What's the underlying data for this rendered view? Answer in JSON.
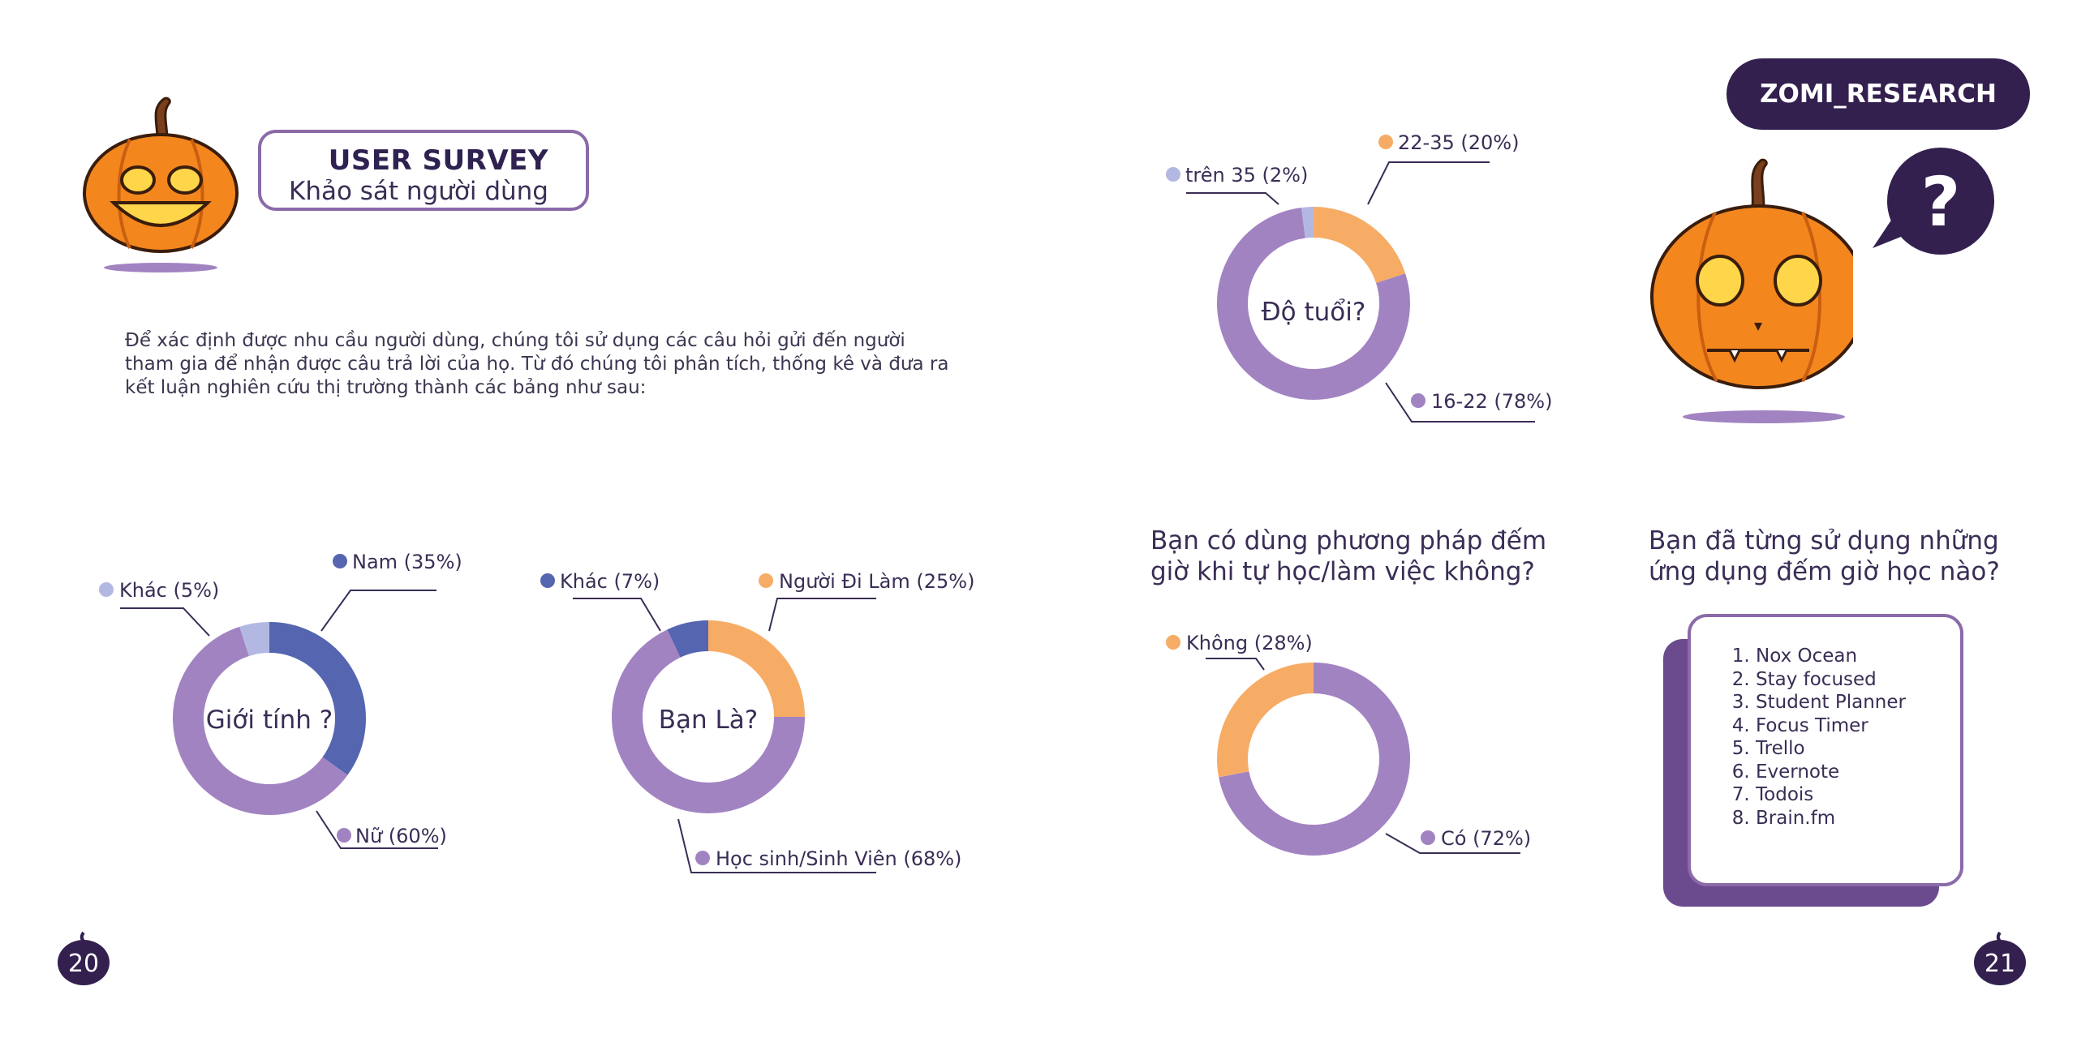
{
  "header": {
    "survey_title": "USER SURVEY",
    "survey_subtitle": "Khảo sát người dùng",
    "intro_text": "Để xác định được nhu cầu người dùng, chúng tôi sử dụng các câu hỏi gửi đến người tham gia để nhận được câu trả lời của họ. Từ đó chúng tôi phân tích, thống kê và đưa ra kết luận nghiên cứu thị trường thành các bảng như sau:",
    "brand": "ZOMI_RESEARCH",
    "question_mark": "?"
  },
  "questions": {
    "timer_method": "Bạn có dùng phương pháp đếm giờ khi tự học/làm việc không?",
    "apps_used": "Bạn đã từng sử dụng những ứng dụng đếm giờ học nào?"
  },
  "apps": [
    "Nox Ocean",
    "Stay focused",
    "Student Planner",
    "Focus Timer",
    "Trello",
    "Evernote",
    "Todois",
    "Brain.fm"
  ],
  "pages": {
    "left": "20",
    "right": "21"
  },
  "colors": {
    "purple": "#a283c2",
    "blue": "#5565b0",
    "light_blue": "#b3b8e2",
    "orange": "#f7ac66",
    "dark": "#33204f"
  },
  "chart_data": [
    {
      "type": "pie",
      "title": "Giới tính ?",
      "series": [
        {
          "labels": [
            "Nam (35%)",
            "Nữ (60%)",
            "Khác (5%)"
          ],
          "values": [
            35,
            60,
            5
          ],
          "colors": [
            "#5565b0",
            "#a283c2",
            "#b3b8e2"
          ]
        }
      ]
    },
    {
      "type": "pie",
      "title": "Bạn Là?",
      "series": [
        {
          "labels": [
            "Người Đi Làm (25%)",
            "Học sinh/Sinh Viên (68%)",
            "Khác (7%)"
          ],
          "values": [
            25,
            68,
            7
          ],
          "colors": [
            "#f7ac66",
            "#a283c2",
            "#5565b0"
          ]
        }
      ]
    },
    {
      "type": "pie",
      "title": "Độ tuổi?",
      "series": [
        {
          "labels": [
            "22-35 (20%)",
            "16-22 (78%)",
            "trên 35 (2%)"
          ],
          "values": [
            20,
            78,
            2
          ],
          "colors": [
            "#f7ac66",
            "#a283c2",
            "#b3b8e2"
          ]
        }
      ]
    },
    {
      "type": "pie",
      "title": "",
      "series": [
        {
          "labels": [
            "Có (72%)",
            "Không (28%)"
          ],
          "values": [
            72,
            28
          ],
          "colors": [
            "#a283c2",
            "#f7ac66"
          ]
        }
      ]
    }
  ]
}
